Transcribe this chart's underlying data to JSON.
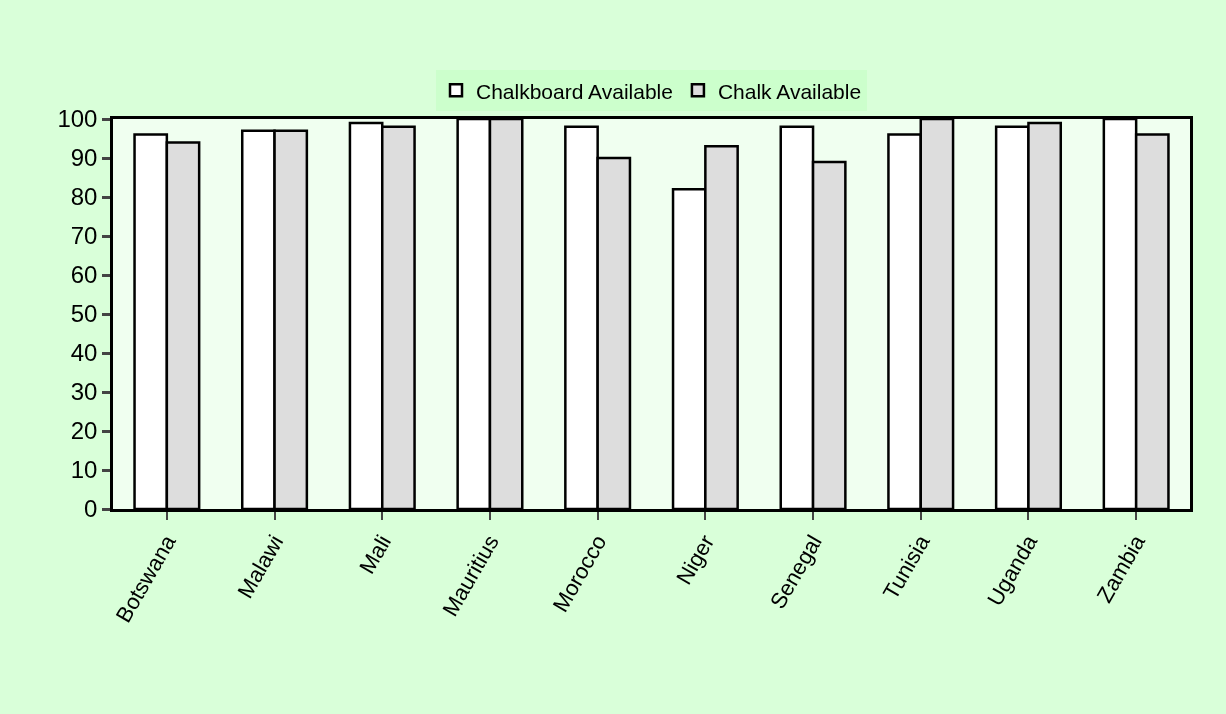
{
  "chart_data": {
    "type": "bar",
    "categories": [
      "Botswana",
      "Malawi",
      "Mali",
      "Mauritius",
      "Morocco",
      "Niger",
      "Senegal",
      "Tunisia",
      "Uganda",
      "Zambia"
    ],
    "series": [
      {
        "name": "Chalkboard Available",
        "color": "#ffffff",
        "values": [
          96,
          97,
          99,
          100,
          98,
          82,
          98,
          96,
          98,
          100
        ]
      },
      {
        "name": "Chalk Available",
        "color": "#dddddd",
        "values": [
          94,
          97,
          98,
          100,
          90,
          93,
          89,
          100,
          99,
          96
        ]
      }
    ],
    "ylim": [
      0,
      100
    ],
    "yticks": [
      0,
      10,
      20,
      30,
      40,
      50,
      60,
      70,
      80,
      90,
      100
    ],
    "grid": false,
    "legend": "top"
  }
}
